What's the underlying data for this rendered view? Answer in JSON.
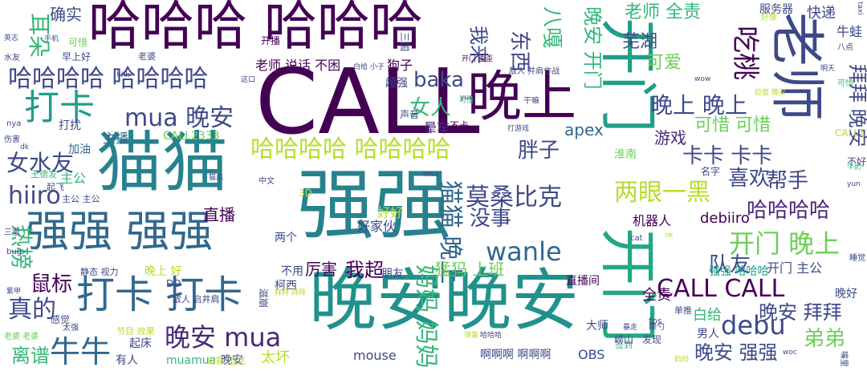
{
  "palette": [
    "#440154",
    "#482878",
    "#3e4989",
    "#31688e",
    "#26828e",
    "#1f9e89",
    "#35b779",
    "#6ece58",
    "#b5de2b",
    "#fde725"
  ],
  "words": [
    {
      "text": "CALL",
      "color": "#440154"
    },
    {
      "text": "强强",
      "color": "#26828e"
    },
    {
      "text": "晚安晚安",
      "color": "#21918c"
    },
    {
      "text": "哈哈哈 哈哈哈",
      "color": "#440154"
    },
    {
      "text": "猫猫",
      "color": "#26828e"
    },
    {
      "text": "强强 强强",
      "color": "#31688e"
    },
    {
      "text": "晚上",
      "color": "#440154"
    },
    {
      "text": "老师",
      "color": "#3e4989"
    },
    {
      "text": "开门",
      "color": "#1f9e89"
    },
    {
      "text": "开门",
      "color": "#22a884"
    },
    {
      "text": "打卡 打卡",
      "color": "#31688e"
    },
    {
      "text": "打卡",
      "color": "#1f9e89"
    },
    {
      "text": "哈哈哈哈 哈哈哈哈",
      "color": "#3e4989"
    },
    {
      "text": "哈哈哈哈 哈哈哈哈",
      "color": "#b5de2b"
    },
    {
      "text": "mua 晚安",
      "color": "#3e4989"
    },
    {
      "text": "晚安 mua",
      "color": "#482878"
    },
    {
      "text": "牛牛",
      "color": "#31688e"
    },
    {
      "text": "女水友",
      "color": "#3e4989"
    },
    {
      "text": "hiiro",
      "color": "#3e4989"
    },
    {
      "text": "鼠标",
      "color": "#440154"
    },
    {
      "text": "真的",
      "color": "#3e4989"
    },
    {
      "text": "离谱",
      "color": "#35b779"
    },
    {
      "text": "耳朵",
      "color": "#35b779"
    },
    {
      "text": "热榜",
      "color": "#35b779"
    },
    {
      "text": "wanle",
      "color": "#31688e"
    },
    {
      "text": "debu",
      "color": "#3e4989"
    },
    {
      "text": "CALL CALL",
      "color": "#440154"
    },
    {
      "text": "开门 晚上",
      "color": "#6ece58"
    },
    {
      "text": "莫桑比克",
      "color": "#3e4989"
    },
    {
      "text": "两眼一黑",
      "color": "#b5de2b"
    },
    {
      "text": "晚上 晚上",
      "color": "#3e4989"
    },
    {
      "text": "卡卡 卡卡",
      "color": "#3e4989"
    },
    {
      "text": "哈哈哈哈",
      "color": "#482878"
    },
    {
      "text": "胖子",
      "color": "#3e4989"
    },
    {
      "text": "没事",
      "color": "#3e4989"
    },
    {
      "text": "帮手",
      "color": "#3e4989"
    },
    {
      "text": "喜欢",
      "color": "#3e4989"
    },
    {
      "text": "队友",
      "color": "#3e4989"
    },
    {
      "text": "弟弟",
      "color": "#6ece58"
    },
    {
      "text": "晚安 拜拜",
      "color": "#3e4989"
    },
    {
      "text": "晚安 强强",
      "color": "#3e4989"
    },
    {
      "text": "baka",
      "color": "#3e4989"
    },
    {
      "text": "女人",
      "color": "#35b779"
    },
    {
      "text": "猫猫 晚上",
      "color": "#31688e"
    },
    {
      "text": "妈妈 妈妈",
      "color": "#35b779"
    },
    {
      "text": "吃桃",
      "color": "#440154"
    },
    {
      "text": "拜拜 晚安",
      "color": "#3e4989"
    },
    {
      "text": "八嘎",
      "color": "#35b779"
    },
    {
      "text": "东西",
      "color": "#3e4989"
    },
    {
      "text": "我来",
      "color": "#3e4989"
    },
    {
      "text": "晚安 开门",
      "color": "#35b779"
    },
    {
      "text": "老师 全责",
      "color": "#35b779"
    },
    {
      "text": "芜湖",
      "color": "#3e4989"
    },
    {
      "text": "可爱",
      "color": "#6ece58"
    },
    {
      "text": "可惜 可惜",
      "color": "#6ece58"
    },
    {
      "text": "游戏",
      "color": "#482878"
    },
    {
      "text": "apex",
      "color": "#31688e"
    },
    {
      "text": "直播",
      "color": "#440154"
    },
    {
      "text": "我超",
      "color": "#440154"
    },
    {
      "text": "猛犸 上班",
      "color": "#6ece58"
    },
    {
      "text": "厉害",
      "color": "#440154"
    },
    {
      "text": "确实",
      "color": "#3e4989"
    },
    {
      "text": "老师 说话 不困",
      "color": "#440154"
    },
    {
      "text": "狗子",
      "color": "#440154"
    },
    {
      "text": "快递",
      "color": "#3e4989"
    },
    {
      "text": "牛蛙",
      "color": "#3e4989"
    },
    {
      "text": "晕车",
      "color": "#482878"
    },
    {
      "text": "超强",
      "color": "#3e4989"
    },
    {
      "text": "主公",
      "color": "#35b779"
    },
    {
      "text": "主播",
      "color": "#31688e"
    },
    {
      "text": "打扰",
      "color": "#3e4989"
    },
    {
      "text": "加油",
      "color": "#31688e"
    },
    {
      "text": "CALL2333",
      "color": "#6ece58"
    },
    {
      "text": "好好",
      "color": "#b5de2b"
    },
    {
      "text": "好家伙",
      "color": "#3e4989"
    },
    {
      "text": "debiiro",
      "color": "#440154"
    },
    {
      "text": "机器人",
      "color": "#440154"
    },
    {
      "text": "开门 主公",
      "color": "#3e4989"
    },
    {
      "text": "强强 哈哈哈",
      "color": "#1f9e89"
    },
    {
      "text": "白给",
      "color": "#35b779"
    },
    {
      "text": "全责",
      "color": "#440154"
    },
    {
      "text": "男人",
      "color": "#3e4989"
    },
    {
      "text": "晚好",
      "color": "#3e4989"
    },
    {
      "text": "睡觉",
      "color": "#3e4989"
    },
    {
      "text": "服务器",
      "color": "#3e4989"
    },
    {
      "text": "mouse",
      "color": "#3e4989"
    },
    {
      "text": "OBS",
      "color": "#3e4989"
    },
    {
      "text": "啊啊啊 啊啊啊",
      "color": "#3e4989"
    },
    {
      "text": "太坏",
      "color": "#b5de2b"
    },
    {
      "text": "有人",
      "color": "#3e4989"
    },
    {
      "text": "起床",
      "color": "#3e4989"
    },
    {
      "text": "晚安",
      "color": "#3e4989"
    },
    {
      "text": "muamua",
      "color": "#35b779"
    },
    {
      "text": "大师",
      "color": "#3e4989"
    },
    {
      "text": "两个",
      "color": "#3e4989"
    },
    {
      "text": "不用",
      "color": "#3e4989"
    },
    {
      "text": "柯西",
      "color": "#3e4989"
    },
    {
      "text": "朋友",
      "color": "#3e4989"
    },
    {
      "text": "直播间",
      "color": "#440154"
    },
    {
      "text": "淮南",
      "color": "#6ece58"
    },
    {
      "text": "晚上 好",
      "color": "#b5de2b"
    },
    {
      "text": "主公 主公",
      "color": "#3e4989"
    },
    {
      "text": "可惜",
      "color": "#6ece58"
    },
    {
      "text": "早上好",
      "color": "#3e4989"
    },
    {
      "text": "开播",
      "color": "#440154"
    },
    {
      "text": "老婆",
      "color": "#3e4989"
    },
    {
      "text": "声音",
      "color": "#3e4989"
    },
    {
      "text": "不卡",
      "color": "#440154"
    },
    {
      "text": "三国",
      "color": "#3e4989"
    },
    {
      "text": "CALL1",
      "color": "#b5de2b"
    },
    {
      "text": "名字",
      "color": "#3e4989"
    },
    {
      "text": "不好",
      "color": "#3e4989"
    },
    {
      "text": "单推",
      "color": "#3e4989"
    },
    {
      "text": "发现",
      "color": "#3e4989"
    },
    {
      "text": "fps",
      "color": "#3e4989"
    },
    {
      "text": "3D",
      "color": "#b5de2b"
    },
    {
      "text": "感觉",
      "color": "#3e4989"
    },
    {
      "text": "节目 效果",
      "color": "#b5de2b"
    },
    {
      "text": "静态 视力",
      "color": "#3e4989"
    },
    {
      "text": "DD",
      "color": "#3e4989"
    },
    {
      "text": "敌人 启井肩",
      "color": "#3e4989"
    },
    {
      "text": "滋崩",
      "color": "#3e4989"
    },
    {
      "text": "王德发",
      "color": "#35b779"
    },
    {
      "text": "起飞",
      "color": "#3e4989"
    },
    {
      "text": "三重",
      "color": "#3e4989"
    },
    {
      "text": "bug",
      "color": "#3e4989"
    },
    {
      "text": "紫甲",
      "color": "#3e4989"
    },
    {
      "text": "老婆 老婆",
      "color": "#6ece58"
    },
    {
      "text": "太强",
      "color": "#3e4989"
    },
    {
      "text": "伤害",
      "color": "#3e4989"
    },
    {
      "text": "nya",
      "color": "#3e4989"
    },
    {
      "text": "dk",
      "color": "#3e4989"
    },
    {
      "text": "水友",
      "color": "#3e4989"
    },
    {
      "text": "英志",
      "color": "#3e4989"
    },
    {
      "text": "可惜",
      "color": "#35b779"
    },
    {
      "text": "好像",
      "color": "#b5de2b"
    },
    {
      "text": "八点",
      "color": "#3e4989"
    },
    {
      "text": "明天",
      "color": "#3e4989"
    },
    {
      "text": "taxi",
      "color": "#3e4989"
    },
    {
      "text": "wow",
      "color": "#3e4989"
    },
    {
      "text": "cat",
      "color": "#3e4989"
    },
    {
      "text": "ok",
      "color": "#b5de2b"
    },
    {
      "text": "yun",
      "color": "#3e4989"
    },
    {
      "text": "牛奶",
      "color": "#35b779"
    },
    {
      "text": "woc",
      "color": "#3e4989"
    },
    {
      "text": "嘴里",
      "color": "#3e4989"
    },
    {
      "text": "签到",
      "color": "#35b779"
    },
    {
      "text": "颠勺",
      "color": "#3e4989"
    },
    {
      "text": "弹簧",
      "color": "#b5de2b"
    },
    {
      "text": "妈妈",
      "color": "#b5de2b"
    },
    {
      "text": "幻影 坦克",
      "color": "#b5de2b"
    },
    {
      "text": "猫爪",
      "color": "#3e4989"
    },
    {
      "text": "中文",
      "color": "#3e4989"
    },
    {
      "text": "mua",
      "color": "#3e4989"
    },
    {
      "text": "hhh",
      "color": "#3e4989"
    },
    {
      "text": "手机",
      "color": "#3e4989"
    },
    {
      "text": "可惜",
      "color": "#35b779"
    },
    {
      "text": "哈哈哈",
      "color": "#3e4989"
    },
    {
      "text": "干嘛",
      "color": "#3e4989"
    },
    {
      "text": "打游戏",
      "color": "#3e4989"
    },
    {
      "text": "敌人 并肩作战",
      "color": "#3e4989"
    },
    {
      "text": "开门 歪歪",
      "color": "#440154"
    },
    {
      "text": "这口",
      "color": "#3e4989"
    },
    {
      "text": "白给 小子",
      "color": "#3e4989"
    },
    {
      "text": "拜拜 拜拜",
      "color": "#b5de2b"
    },
    {
      "text": "yue",
      "color": "#3e4989"
    },
    {
      "text": "暴走",
      "color": "#3e4989"
    },
    {
      "text": "崂山",
      "color": "#3e4989"
    },
    {
      "text": "拉面 晚安",
      "color": "#b5de2b"
    }
  ]
}
